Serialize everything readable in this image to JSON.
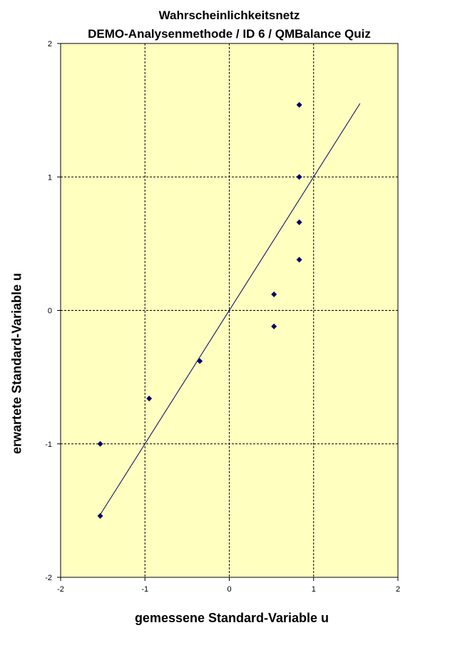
{
  "chart_data": {
    "type": "scatter",
    "title": "Wahrscheinlichkeitsnetz",
    "subtitle": "DEMO-Analysenmethode  / ID 6 / QMBalance Quiz",
    "xlabel": "gemessene Standard-Variable u",
    "ylabel": "erwartete Standard-Variable u",
    "xlim": [
      -2,
      2
    ],
    "ylim": [
      -2,
      2
    ],
    "xticks": [
      -2,
      -1,
      0,
      1,
      2
    ],
    "yticks": [
      -2,
      -1,
      0,
      1,
      2
    ],
    "grid": true,
    "legend": "none",
    "plot_background": "#FFFFC0",
    "point_color": "#000066",
    "line_color": "#000066",
    "points": [
      {
        "x": -1.53,
        "y": -1.54
      },
      {
        "x": -1.53,
        "y": -1.0
      },
      {
        "x": -0.95,
        "y": -0.66
      },
      {
        "x": -0.35,
        "y": -0.38
      },
      {
        "x": 0.53,
        "y": -0.12
      },
      {
        "x": 0.53,
        "y": 0.12
      },
      {
        "x": 0.83,
        "y": 0.38
      },
      {
        "x": 0.83,
        "y": 0.66
      },
      {
        "x": 0.83,
        "y": 1.0
      },
      {
        "x": 0.83,
        "y": 1.54
      }
    ],
    "fit_line": {
      "x": [
        -1.53,
        1.55
      ],
      "y": [
        -1.53,
        1.55
      ]
    }
  }
}
